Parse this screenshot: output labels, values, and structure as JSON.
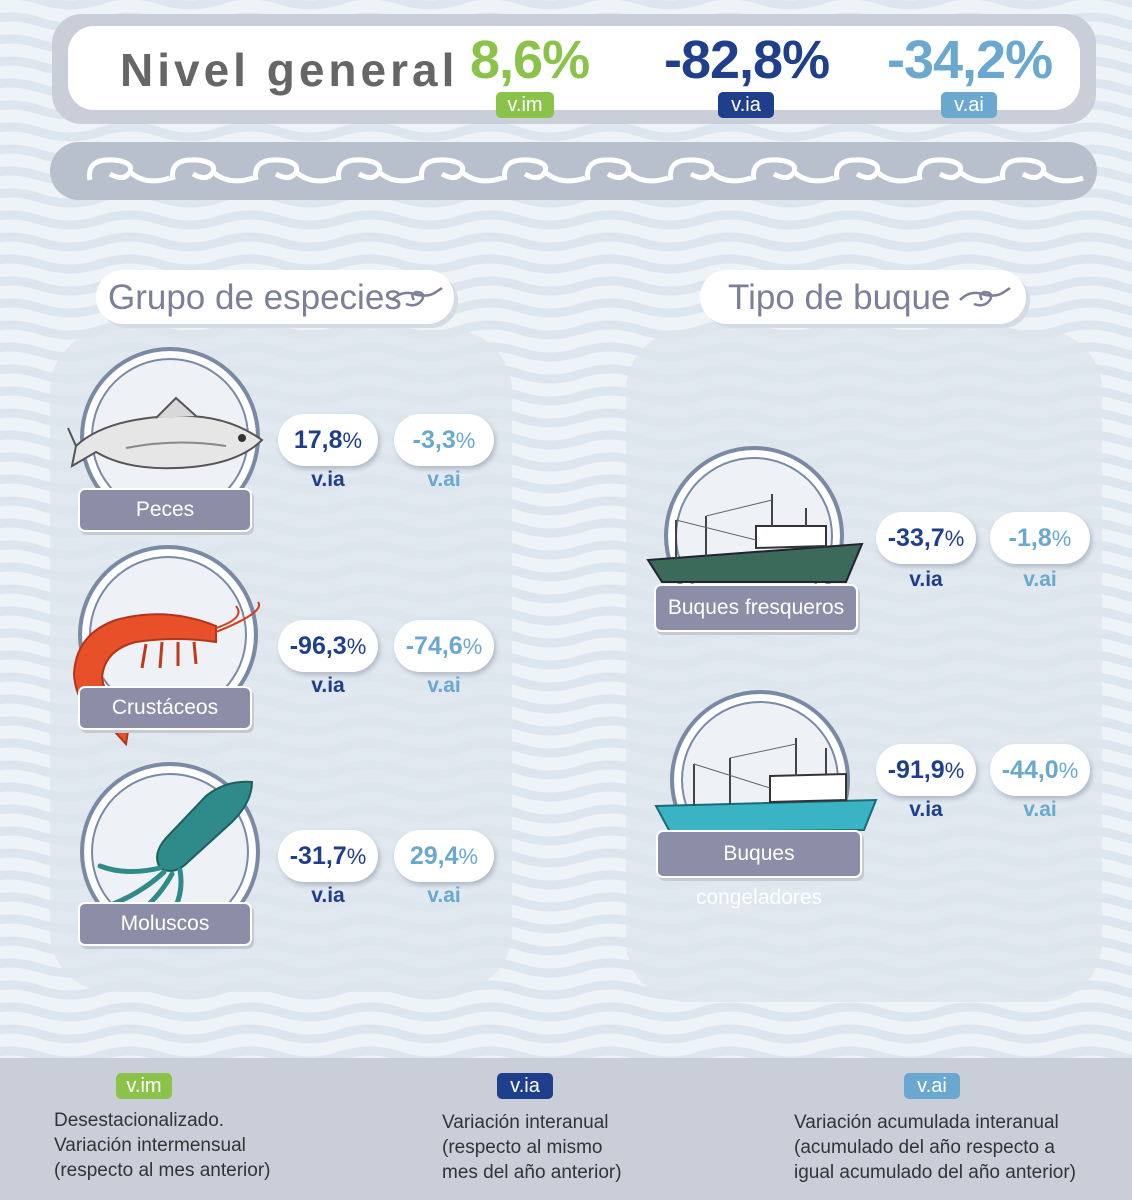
{
  "header": {
    "title": "Nivel general",
    "vim": {
      "value": "8,6%",
      "tag": "v.im"
    },
    "via": {
      "value": "-82,8%",
      "tag": "v.ia"
    },
    "vai": {
      "value": "-34,2%",
      "tag": "v.ai"
    }
  },
  "colors": {
    "vim": "#8bc34a",
    "via": "#1f3f8c",
    "vai": "#6aa8d0"
  },
  "especies": {
    "title": "Grupo de especies",
    "items": [
      {
        "name": "Peces",
        "icon": "fish-icon",
        "via": "17,8",
        "vai": "-3,3"
      },
      {
        "name": "Crustáceos",
        "icon": "shrimp-icon",
        "via": "-96,3",
        "vai": "-74,6"
      },
      {
        "name": "Moluscos",
        "icon": "squid-icon",
        "via": "-31,7",
        "vai": "29,4"
      }
    ]
  },
  "buques": {
    "title": "Tipo de buque",
    "items": [
      {
        "name": "Buques fresqueros",
        "icon": "fresh-fishing-boat-icon",
        "via": "-33,7",
        "vai": "-1,8"
      },
      {
        "name": "Buques congeladores",
        "icon": "freezer-fishing-boat-icon",
        "via": "-91,9",
        "vai": "-44,0"
      }
    ]
  },
  "labels": {
    "pct": "%",
    "via": "v.ia",
    "vai": "v.ai"
  },
  "legend": {
    "vim": {
      "tag": "v.im",
      "l1": "Desestacionalizado.",
      "l2": "Variación intermensual",
      "l3": "(respecto al mes anterior)"
    },
    "via": {
      "tag": "v.ia",
      "l1": "Variación interanual",
      "l2": "(respecto al mismo",
      "l3": "mes del año anterior)"
    },
    "vai": {
      "tag": "v.ai",
      "l1": "Variación acumulada interanual",
      "l2": "(acumulado del año respecto a",
      "l3": "igual acumulado del año anterior)"
    }
  }
}
